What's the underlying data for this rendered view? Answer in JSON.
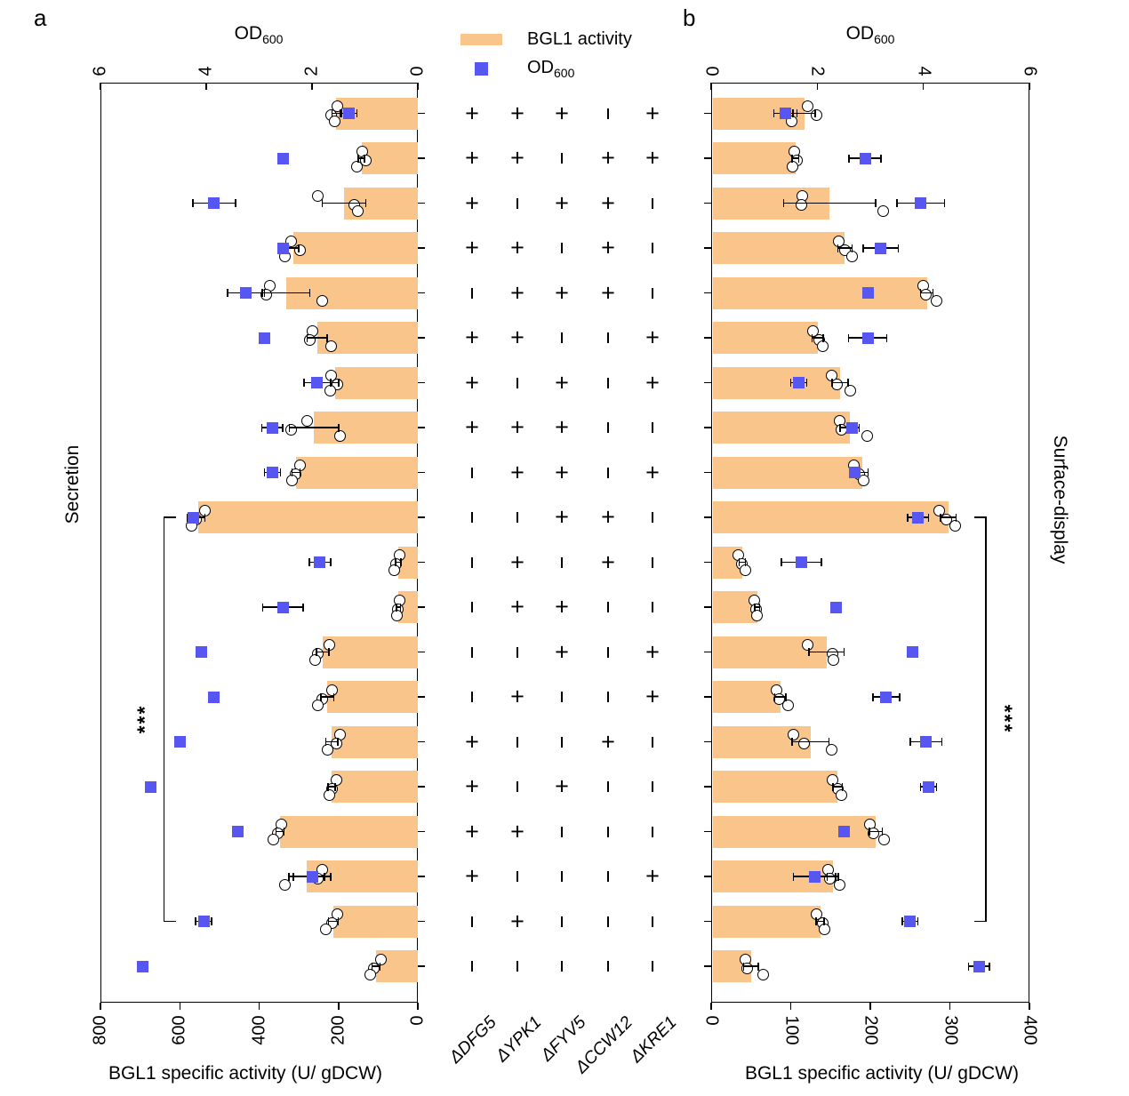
{
  "figure": {
    "panels": [
      {
        "letter": "a",
        "side_label": "Secretion",
        "od_title": "OD",
        "od_title_sub": "600",
        "activity_label": "BGL1 specific activity (U/ gDCW)",
        "od_ticks": [
          6,
          4,
          2,
          0
        ],
        "activity_ticks": [
          800,
          600,
          400,
          200,
          0
        ]
      },
      {
        "letter": "b",
        "side_label": "Surface-display",
        "od_title": "OD",
        "od_title_sub": "600",
        "activity_label": "BGL1 specific activity (U/ gDCW)",
        "od_ticks": [
          0,
          2,
          4,
          6
        ],
        "activity_ticks": [
          0,
          100,
          200,
          300,
          400
        ]
      }
    ],
    "legend": {
      "bar_label": "BGL1 activity",
      "od_label": "OD",
      "od_label_sub": "600"
    },
    "colors": {
      "bar": "#FAC58A",
      "od_marker": "#5856F0"
    }
  },
  "chart_data": {
    "type": "bar",
    "orientation": "horizontal",
    "genes": [
      "ΔDFG5",
      "ΔYPK1",
      "ΔFYV5",
      "ΔCCW12",
      "ΔKRE1"
    ],
    "panel_a": {
      "title": "Secretion",
      "activity_axis": [
        800,
        0
      ],
      "od_axis": [
        6,
        0
      ]
    },
    "panel_b": {
      "title": "Surface-display",
      "activity_axis": [
        0,
        400
      ],
      "od_axis": [
        0,
        6
      ]
    },
    "significance": {
      "label": "***",
      "from_row": 10,
      "to_row": 19
    },
    "rows": [
      {
        "deletions": [
          "+",
          "+",
          "+",
          "-",
          "+"
        ],
        "secretion": {
          "activity": 206,
          "activity_err": 10,
          "points": [
            202,
            218,
            210
          ],
          "od": 1.3,
          "od_err": 0.15
        },
        "surface_display": {
          "activity": 117,
          "activity_err": 14,
          "points": [
            121,
            132,
            101
          ],
          "od": 1.4,
          "od_err": 0.22
        }
      },
      {
        "deletions": [
          "+",
          "+",
          "-",
          "+",
          "+"
        ],
        "secretion": {
          "activity": 142,
          "activity_err": 8,
          "points": [
            139,
            131,
            153
          ],
          "od": 2.55,
          "od_err": 0
        },
        "surface_display": {
          "activity": 106,
          "activity_err": 4,
          "points": [
            104,
            108,
            102
          ],
          "od": 2.9,
          "od_err": 0.3
        }
      },
      {
        "deletions": [
          "+",
          "-",
          "+",
          "+",
          "-"
        ],
        "secretion": {
          "activity": 186,
          "activity_err": 55,
          "points": [
            251,
            160,
            152
          ],
          "od": 3.85,
          "od_err": 0.4
        },
        "surface_display": {
          "activity": 149,
          "activity_err": 58,
          "points": [
            115,
            113,
            216
          ],
          "od": 3.95,
          "od_err": 0.45
        }
      },
      {
        "deletions": [
          "+",
          "+",
          "-",
          "+",
          "-"
        ],
        "secretion": {
          "activity": 314,
          "activity_err": 14,
          "points": [
            320,
            296,
            336
          ],
          "od": 2.55,
          "od_err": 0.1
        },
        "surface_display": {
          "activity": 168,
          "activity_err": 9,
          "points": [
            160,
            168,
            177
          ],
          "od": 3.2,
          "od_err": 0.33
        }
      },
      {
        "deletions": [
          "-",
          "+",
          "+",
          "+",
          "-"
        ],
        "secretion": {
          "activity": 332,
          "activity_err": 60,
          "points": [
            372,
            381,
            242
          ],
          "od": 3.25,
          "od_err": 0.35
        },
        "surface_display": {
          "activity": 271,
          "activity_err": 8,
          "points": [
            266,
            270,
            283
          ],
          "od": 2.95,
          "od_err": 0
        }
      },
      {
        "deletions": [
          "+",
          "+",
          "-",
          "-",
          "+"
        ],
        "secretion": {
          "activity": 254,
          "activity_err": 25,
          "points": [
            265,
            273,
            218
          ],
          "od": 2.9,
          "od_err": 0
        },
        "surface_display": {
          "activity": 134,
          "activity_err": 7,
          "points": [
            128,
            136,
            140
          ],
          "od": 2.95,
          "od_err": 0.36
        }
      },
      {
        "deletions": [
          "+",
          "-",
          "+",
          "-",
          "+"
        ],
        "secretion": {
          "activity": 209,
          "activity_err": 10,
          "points": [
            218,
            202,
            221
          ],
          "od": 1.9,
          "od_err": 0.25
        },
        "surface_display": {
          "activity": 162,
          "activity_err": 10,
          "points": [
            151,
            158,
            175
          ],
          "od": 1.65,
          "od_err": 0.15
        }
      },
      {
        "deletions": [
          "+",
          "+",
          "+",
          "-",
          "-"
        ],
        "secretion": {
          "activity": 262,
          "activity_err": 62,
          "points": [
            278,
            320,
            197
          ],
          "od": 2.75,
          "od_err": 0.2
        },
        "surface_display": {
          "activity": 174,
          "activity_err": 12,
          "points": [
            162,
            164,
            196
          ],
          "od": 2.65,
          "od_err": 0
        }
      },
      {
        "deletions": [
          "-",
          "+",
          "+",
          "-",
          "+"
        ],
        "secretion": {
          "activity": 307,
          "activity_err": 10,
          "points": [
            298,
            309,
            318
          ],
          "od": 2.75,
          "od_err": 0.15
        },
        "surface_display": {
          "activity": 190,
          "activity_err": 7,
          "points": [
            179,
            186,
            192
          ],
          "od": 2.7,
          "od_err": 0
        }
      },
      {
        "deletions": [
          "-",
          "-",
          "+",
          "+",
          "-"
        ],
        "secretion": {
          "activity": 553,
          "activity_err": 16,
          "points": [
            537,
            560,
            571
          ],
          "od": 4.25,
          "od_err": 0.1
        },
        "surface_display": {
          "activity": 298,
          "activity_err": 10,
          "points": [
            287,
            296,
            307
          ],
          "od": 3.9,
          "od_err": 0.2
        }
      },
      {
        "deletions": [
          "-",
          "+",
          "-",
          "+",
          "-"
        ],
        "secretion": {
          "activity": 49,
          "activity_err": 7,
          "points": [
            45,
            56,
            60
          ],
          "od": 1.85,
          "od_err": 0.2
        },
        "surface_display": {
          "activity": 39,
          "activity_err": 4,
          "points": [
            34,
            39,
            43
          ],
          "od": 1.7,
          "od_err": 0.38
        }
      },
      {
        "deletions": [
          "-",
          "+",
          "+",
          "-",
          "-"
        ],
        "secretion": {
          "activity": 49,
          "activity_err": 5,
          "points": [
            46,
            50,
            53
          ],
          "od": 2.55,
          "od_err": 0.38
        },
        "surface_display": {
          "activity": 58,
          "activity_err": 3,
          "points": [
            54,
            56,
            58
          ],
          "od": 2.35,
          "od_err": 0
        }
      },
      {
        "deletions": [
          "-",
          "-",
          "+",
          "-",
          "+"
        ],
        "secretion": {
          "activity": 240,
          "activity_err": 16,
          "points": [
            224,
            251,
            258
          ],
          "od": 4.1,
          "od_err": 0
        },
        "surface_display": {
          "activity": 145,
          "activity_err": 22,
          "points": [
            121,
            153,
            154
          ],
          "od": 3.8,
          "od_err": 0.1
        }
      },
      {
        "deletions": [
          "-",
          "+",
          "-",
          "-",
          "+"
        ],
        "secretion": {
          "activity": 228,
          "activity_err": 16,
          "points": [
            217,
            240,
            251
          ],
          "od": 3.85,
          "od_err": 0
        },
        "surface_display": {
          "activity": 87,
          "activity_err": 7,
          "points": [
            82,
            86,
            97
          ],
          "od": 3.3,
          "od_err": 0.25
        }
      },
      {
        "deletions": [
          "+",
          "-",
          "-",
          "+",
          "-"
        ],
        "secretion": {
          "activity": 217,
          "activity_err": 15,
          "points": [
            195,
            206,
            228
          ],
          "od": 4.5,
          "od_err": 0
        },
        "surface_display": {
          "activity": 125,
          "activity_err": 23,
          "points": [
            103,
            117,
            151
          ],
          "od": 4.05,
          "od_err": 0.3
        }
      },
      {
        "deletions": [
          "+",
          "-",
          "+",
          "-",
          "-"
        ],
        "secretion": {
          "activity": 217,
          "activity_err": 9,
          "points": [
            206,
            217,
            224
          ],
          "od": 5.05,
          "od_err": 0
        },
        "surface_display": {
          "activity": 159,
          "activity_err": 6,
          "points": [
            153,
            159,
            164
          ],
          "od": 4.1,
          "od_err": 0.15
        }
      },
      {
        "deletions": [
          "+",
          "+",
          "-",
          "-",
          "-"
        ],
        "secretion": {
          "activity": 347,
          "activity_err": 10,
          "points": [
            343,
            354,
            365
          ],
          "od": 3.4,
          "od_err": 0
        },
        "surface_display": {
          "activity": 207,
          "activity_err": 8,
          "points": [
            199,
            204,
            217
          ],
          "od": 2.5,
          "od_err": 0
        }
      },
      {
        "deletions": [
          "+",
          "-",
          "-",
          "-",
          "+"
        ],
        "secretion": {
          "activity": 280,
          "activity_err": 45,
          "points": [
            242,
            253,
            336
          ],
          "od": 2,
          "od_err": 0.35
        },
        "surface_display": {
          "activity": 153,
          "activity_err": 7,
          "points": [
            147,
            149,
            161
          ],
          "od": 1.95,
          "od_err": 0.4
        }
      },
      {
        "deletions": [
          "-",
          "+",
          "-",
          "-",
          "-"
        ],
        "secretion": {
          "activity": 213,
          "activity_err": 12,
          "points": [
            202,
            217,
            231
          ],
          "od": 4.05,
          "od_err": 0.15
        },
        "surface_display": {
          "activity": 137,
          "activity_err": 5,
          "points": [
            132,
            140,
            142
          ],
          "od": 3.75,
          "od_err": 0.15
        }
      },
      {
        "deletions": [
          "-",
          "-",
          "-",
          "-",
          "-"
        ],
        "secretion": {
          "activity": 105,
          "activity_err": 10,
          "points": [
            94,
            112,
            119
          ],
          "od": 5.2,
          "od_err": 0
        },
        "surface_display": {
          "activity": 50,
          "activity_err": 9,
          "points": [
            43,
            45,
            65
          ],
          "od": 5.05,
          "od_err": 0.2
        }
      }
    ]
  }
}
